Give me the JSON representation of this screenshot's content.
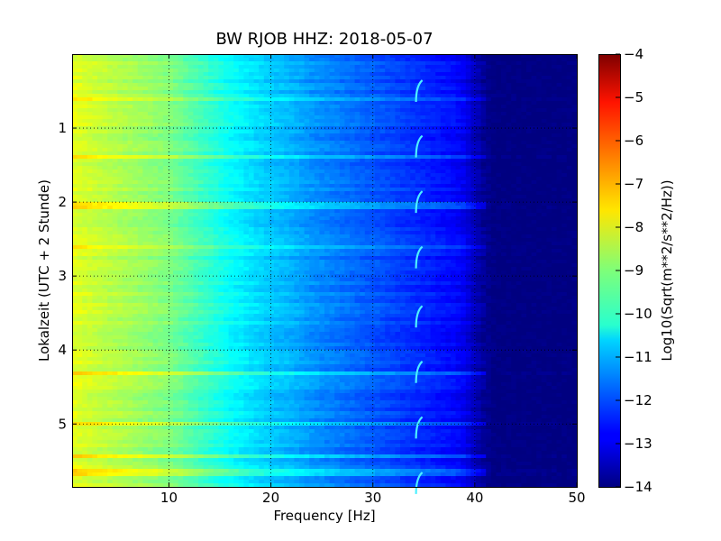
{
  "chart_data": {
    "type": "heatmap",
    "title": "BW RJOB HHZ: 2018-05-07",
    "xlabel": "Frequency [Hz]",
    "ylabel": "Lokalzeit (UTC + 2 Stunde)",
    "xlim": [
      0.5,
      50
    ],
    "ylim": [
      0,
      5.85
    ],
    "y_inverted": true,
    "x_ticks": [
      10,
      20,
      30,
      40,
      50
    ],
    "x_tick_labels": [
      "10",
      "20",
      "30",
      "40",
      "50"
    ],
    "y_ticks": [
      1,
      2,
      3,
      4,
      5
    ],
    "y_tick_labels": [
      "1",
      "2",
      "3",
      "4",
      "5"
    ],
    "grid": true,
    "grid_style": "dotted",
    "colormap": "jet",
    "colorbar": {
      "label": "Log10(Sqrt(m**2/s**2/Hz))",
      "min": -14,
      "max": -4,
      "ticks": [
        -4,
        -5,
        -6,
        -7,
        -8,
        -9,
        -10,
        -11,
        -12,
        -13,
        -14
      ],
      "tick_labels": [
        "−4",
        "−5",
        "−6",
        "−7",
        "−8",
        "−9",
        "−10",
        "−11",
        "−12",
        "−13",
        "−14"
      ]
    },
    "spectral_profile": {
      "frequency_hz": [
        0.5,
        2,
        5,
        8,
        10,
        12,
        14,
        16,
        18,
        20,
        22,
        24,
        26,
        28,
        30,
        32,
        34,
        36,
        38,
        39,
        40,
        41,
        42,
        50
      ],
      "level": [
        -8.0,
        -8.2,
        -8.5,
        -8.8,
        -9.0,
        -9.4,
        -9.8,
        -10.2,
        -10.5,
        -10.8,
        -11.0,
        -11.3,
        -11.5,
        -11.7,
        -11.9,
        -12.1,
        -12.3,
        -12.5,
        -12.7,
        -12.9,
        -13.4,
        -13.8,
        -14.0,
        -14.0
      ]
    },
    "high_energy_rows_hours": [
      0.6,
      1.4,
      2.05,
      2.6,
      4.33,
      5.0,
      5.45,
      5.65
    ],
    "spectral_line_hz": 34.5,
    "transient_hours": [
      0.5,
      1.25,
      2.0,
      2.75,
      3.55,
      4.3,
      5.05,
      5.8
    ]
  }
}
